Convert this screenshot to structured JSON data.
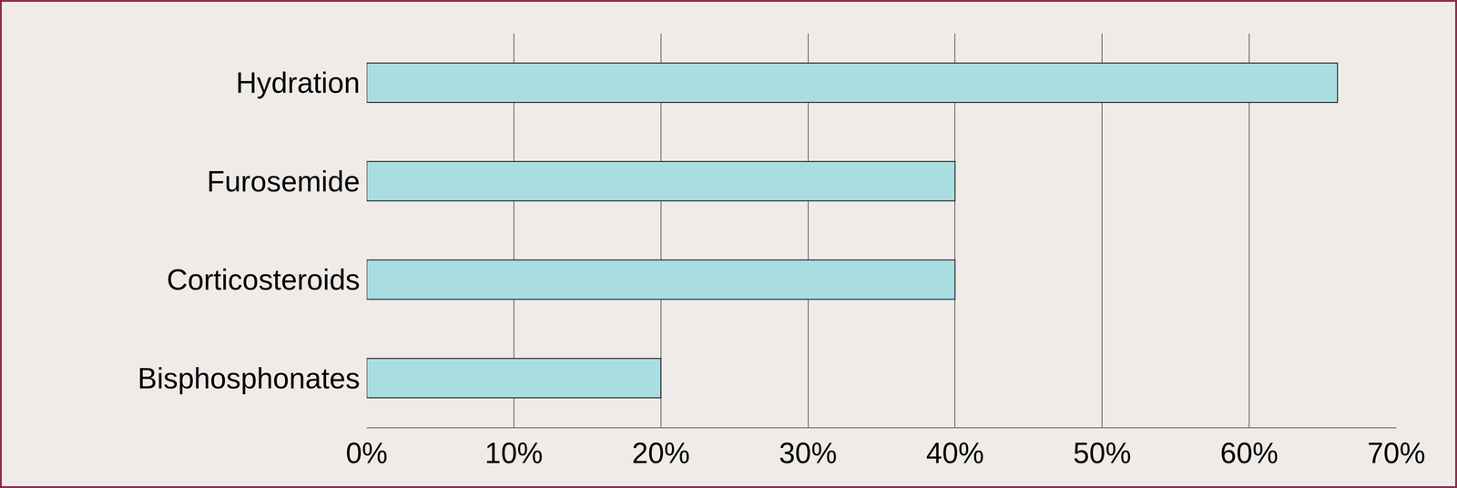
{
  "chart_data": {
    "type": "bar",
    "orientation": "horizontal",
    "categories": [
      "Hydration",
      "Furosemide",
      "Corticosteroids",
      "Bisphosphonates"
    ],
    "values": [
      66,
      40,
      40,
      20
    ],
    "color": "#a9dde0",
    "xlim": [
      0,
      70
    ],
    "xticks": [
      {
        "value": 0,
        "label": "0%"
      },
      {
        "value": 10,
        "label": "10%"
      },
      {
        "value": 20,
        "label": "20%"
      },
      {
        "value": 30,
        "label": "30%"
      },
      {
        "value": 40,
        "label": "40%"
      },
      {
        "value": 50,
        "label": "50%"
      },
      {
        "value": 60,
        "label": "60%"
      },
      {
        "value": 70,
        "label": "70%"
      }
    ],
    "grid": true
  }
}
